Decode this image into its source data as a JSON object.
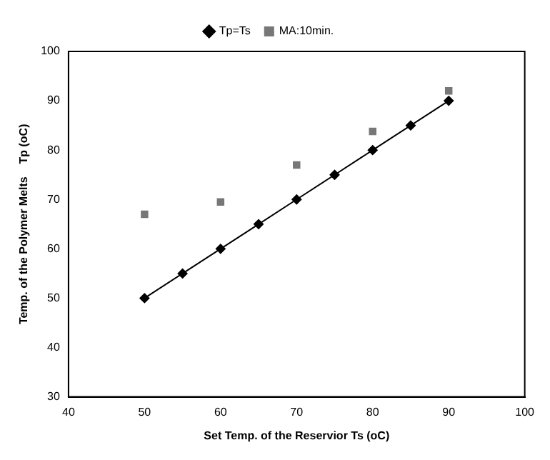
{
  "chart_data": {
    "type": "line",
    "xlabel": "Set Temp. of the Reservior Ts (oC)",
    "ylabel": "Temp. of the Polymer Melts    Tp (oC)",
    "x": [
      50,
      55,
      60,
      65,
      70,
      75,
      80,
      85,
      90
    ],
    "series": [
      {
        "name": "Tp=Ts",
        "type": "line",
        "marker": "diamond",
        "color": "#000000",
        "values": [
          50,
          55,
          60,
          65,
          70,
          75,
          80,
          85,
          90
        ]
      },
      {
        "name": "MA:10min.",
        "type": "scatter",
        "marker": "square",
        "color": "#777777",
        "x": [
          50,
          60,
          70,
          80,
          90
        ],
        "values": [
          67,
          69.5,
          77,
          83.8,
          92
        ]
      }
    ],
    "xlim": [
      40,
      100
    ],
    "xticks": [
      40,
      50,
      60,
      70,
      80,
      90,
      100
    ],
    "ylim": [
      30,
      100
    ],
    "yticks": [
      30,
      40,
      50,
      60,
      70,
      80,
      90,
      100
    ],
    "grid": false,
    "legend": "top"
  }
}
